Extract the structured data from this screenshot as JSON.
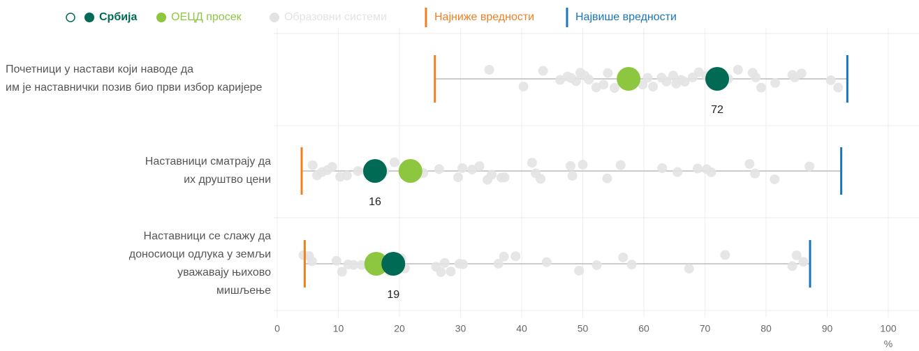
{
  "chart_data": {
    "type": "dot",
    "categories": [
      [
        "Почетници у настави који наводе да",
        "им је наставнички позив био први избор каријере"
      ],
      [
        "Наставници сматрају да",
        "их друштво цени"
      ],
      [
        "Наставници се слажу да",
        "доносиоци одлука у земљи",
        "уважавају њихово",
        "мишљење"
      ]
    ],
    "series": [
      {
        "name": "Србија",
        "color": "#006a55",
        "values": [
          72,
          16,
          19
        ]
      },
      {
        "name": "ОЕЦД просек",
        "color": "#8dc63f",
        "values": [
          57.5,
          21.8,
          16.2
        ]
      },
      {
        "name": "Образовни системи",
        "color": "#e3e3e3",
        "values": [
          [
            34.7,
            40.3,
            43.5,
            46.3,
            47.5,
            48.1,
            48.9,
            49.6,
            50.3,
            51,
            52.2,
            53.4,
            54.1,
            55.2,
            59.8,
            60.6,
            61.5,
            62.9,
            63.7,
            64.8,
            65.3,
            66.1,
            66.7,
            68,
            69,
            70.2,
            73.8,
            75.4,
            77.8,
            78.3,
            79.2,
            81.5,
            84.3,
            84.7,
            85.8,
            90.6,
            91.8
          ],
          [
            5.8,
            6.5,
            7.3,
            8.2,
            9,
            10.3,
            11.4,
            13.2,
            14.6,
            17.5,
            19.2,
            21.4,
            23.9,
            26.5,
            29.6,
            30.3,
            31.9,
            33.1,
            34.4,
            35.1,
            36.7,
            37.2,
            41.7,
            42.3,
            43.1,
            48,
            48.3,
            50,
            54,
            56.2,
            63,
            65.5,
            68.8,
            70.3,
            71,
            77.3,
            78.2,
            81.4,
            87.1
          ],
          [
            4.3,
            5.2,
            5.7,
            9.7,
            10.6,
            11.6,
            12.5,
            13.8,
            14.7,
            15.3,
            17.5,
            18.4,
            19.8,
            20.3,
            20.9,
            26,
            26.8,
            27.4,
            28.4,
            29.8,
            30.4,
            36.2,
            37.1,
            39,
            44.1,
            49.4,
            52.3,
            56.6,
            58,
            67.4,
            73.3,
            84.3,
            85,
            86.1
          ]
        ]
      },
      {
        "name": "Најниже вредности",
        "color": "#f07f22",
        "values": [
          25.8,
          4,
          4.5
        ]
      },
      {
        "name": "Највише вредности",
        "color": "#1a75bb",
        "values": [
          93.3,
          92.3,
          87.2
        ]
      }
    ],
    "xlim": [
      0,
      100
    ],
    "xticks": [
      0,
      10,
      20,
      30,
      40,
      50,
      60,
      70,
      80,
      90,
      100
    ],
    "xlabel": "%",
    "grid": true
  }
}
